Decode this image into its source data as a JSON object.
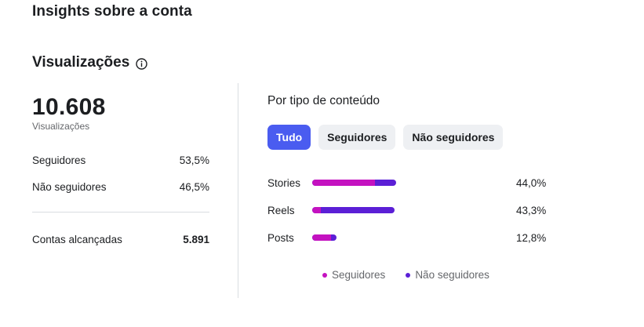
{
  "header": {
    "title": "Insights sobre a conta"
  },
  "section": {
    "title": "Visualizações",
    "info_icon": "info-icon"
  },
  "summary": {
    "total": "10.608",
    "total_label": "Visualizações",
    "rows": [
      {
        "label": "Seguidores",
        "value": "53,5%"
      },
      {
        "label": "Não seguidores",
        "value": "46,5%"
      }
    ],
    "reach": {
      "label": "Contas alcançadas",
      "value": "5.891"
    }
  },
  "content_type": {
    "title": "Por tipo de conteúdo",
    "tabs": [
      {
        "label": "Tudo",
        "active": true
      },
      {
        "label": "Seguidores",
        "active": false
      },
      {
        "label": "Não seguidores",
        "active": false
      }
    ],
    "bars": [
      {
        "label": "Stories",
        "value": "44,0%",
        "total_pct": 44.0,
        "followers_share": 0.75
      },
      {
        "label": "Reels",
        "value": "43,3%",
        "total_pct": 43.3,
        "followers_share": 0.1
      },
      {
        "label": "Posts",
        "value": "12,8%",
        "total_pct": 12.8,
        "followers_share": 0.78
      }
    ],
    "legend": [
      {
        "label": "Seguidores",
        "color": "#c412c0"
      },
      {
        "label": "Não seguidores",
        "color": "#5b1fd6"
      }
    ]
  },
  "colors": {
    "accent": "#4a5cf0",
    "followers": "#c412c0",
    "non_followers": "#5b1fd6"
  }
}
